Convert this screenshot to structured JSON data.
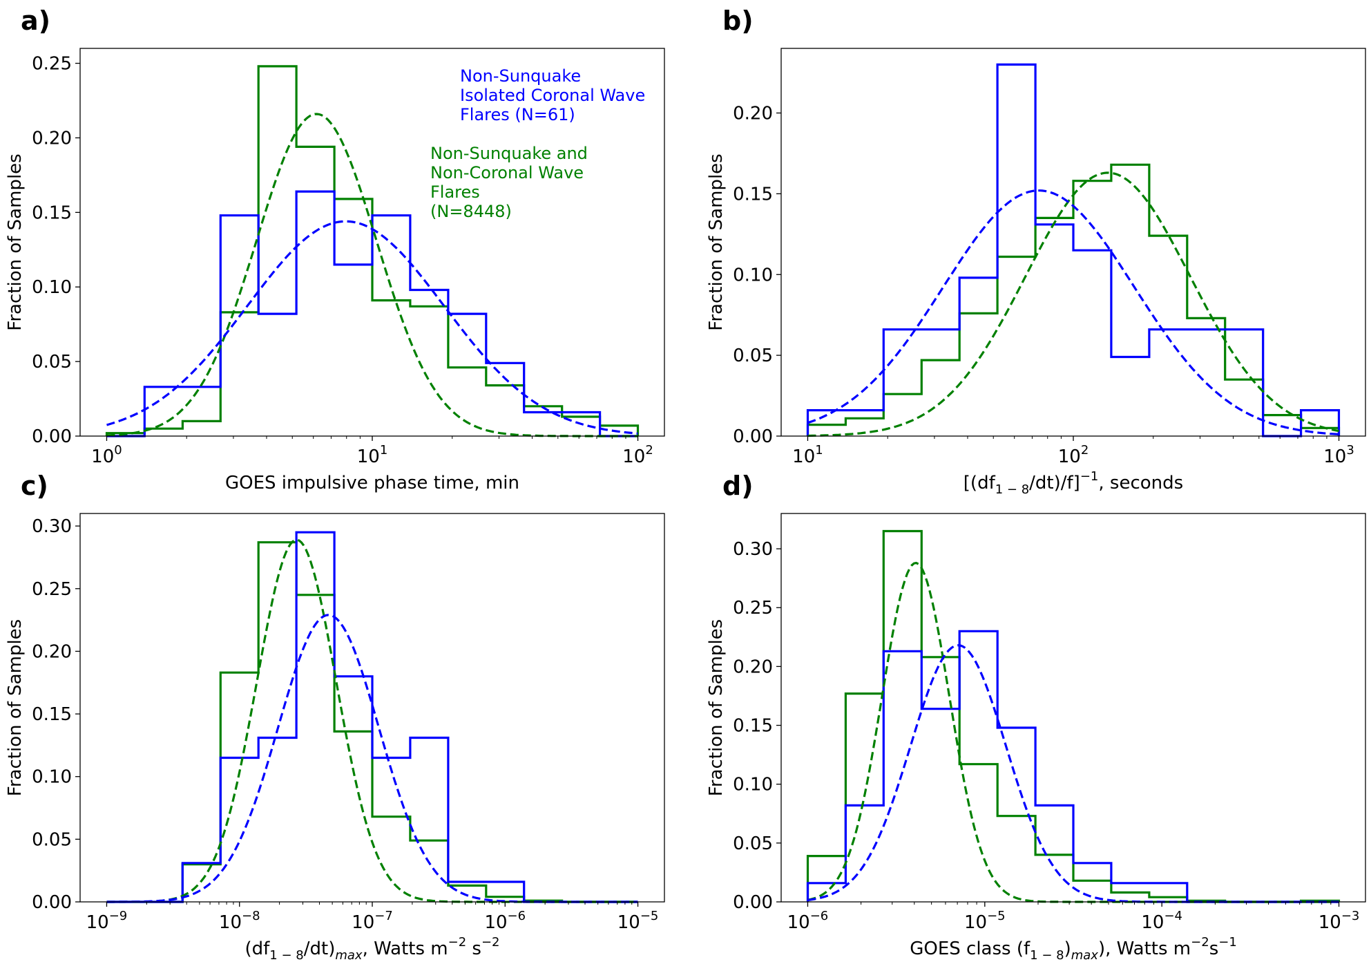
{
  "colors": {
    "blue": "#0000ff",
    "green": "#008000",
    "axis": "#000000"
  },
  "legend": {
    "blue": [
      "Non-Sunquake",
      "Isolated Coronal Wave",
      "Flares (N=61)"
    ],
    "green": [
      "Non-Sunquake and",
      "Non-Coronal Wave",
      "Flares",
      "(N=8448)"
    ]
  },
  "chart_data": [
    {
      "panel": "a)",
      "type": "histogram-step",
      "xscale": "log",
      "xlabel": "GOES impulsive phase time, min",
      "ylabel": "Fraction of Samples",
      "xlim": [
        1,
        100
      ],
      "ylim": [
        0,
        0.26
      ],
      "xticks": [
        {
          "v": 1,
          "b": "10",
          "e": "0"
        },
        {
          "v": 10,
          "b": "10",
          "e": "1"
        },
        {
          "v": 100,
          "b": "10",
          "e": "2"
        }
      ],
      "yticks": [
        0,
        0.05,
        0.1,
        0.15,
        0.2,
        0.25
      ],
      "yticklabels": [
        "0.00",
        "0.05",
        "0.10",
        "0.15",
        "0.20",
        "0.25"
      ],
      "edges": [
        1.0,
        1.389,
        1.931,
        2.683,
        3.728,
        5.179,
        7.197,
        10.0,
        13.895,
        19.307,
        26.827,
        37.276,
        51.795,
        71.969,
        100.0
      ],
      "series": [
        {
          "name": "Non-Sunquake and Non-Coronal Wave Flares (N=8448)",
          "color": "green",
          "values": [
            0.002,
            0.005,
            0.01,
            0.083,
            0.248,
            0.194,
            0.159,
            0.091,
            0.087,
            0.046,
            0.034,
            0.02,
            0.013,
            0.007
          ],
          "fit": {
            "peak": 0.216,
            "mu_log10": 0.79,
            "sigma_log10": 0.226
          }
        },
        {
          "name": "Non-Sunquake Isolated Coronal Wave Flares (N=61)",
          "color": "blue",
          "values": [
            0.0,
            0.033,
            0.033,
            0.148,
            0.082,
            0.164,
            0.115,
            0.148,
            0.098,
            0.082,
            0.049,
            0.016,
            0.016,
            0.0
          ],
          "fit": {
            "peak": 0.144,
            "mu_log10": 0.9,
            "sigma_log10": 0.37
          }
        }
      ]
    },
    {
      "panel": "b)",
      "type": "histogram-step",
      "xscale": "log",
      "xlabel": "[(df1−8/dt)/f]−1, seconds",
      "xlabel_parts": [
        "[(df",
        "1 − 8",
        "/dt)/f]",
        "−1",
        ", seconds"
      ],
      "ylabel": "Fraction of Samples",
      "xlim": [
        10,
        1000
      ],
      "ylim": [
        0,
        0.24
      ],
      "xticks": [
        {
          "v": 10,
          "b": "10",
          "e": "1"
        },
        {
          "v": 100,
          "b": "10",
          "e": "2"
        },
        {
          "v": 1000,
          "b": "10",
          "e": "3"
        }
      ],
      "yticks": [
        0,
        0.05,
        0.1,
        0.15,
        0.2
      ],
      "yticklabels": [
        "0.00",
        "0.05",
        "0.10",
        "0.15",
        "0.20"
      ],
      "edges": [
        10.0,
        13.895,
        19.307,
        26.827,
        37.276,
        51.795,
        71.969,
        100.0,
        138.95,
        193.07,
        268.27,
        372.76,
        517.95,
        719.69,
        1000.0
      ],
      "series": [
        {
          "name": "Non-Sunquake and Non-Coronal Wave Flares (N=8448)",
          "color": "green",
          "values": [
            0.007,
            0.011,
            0.026,
            0.047,
            0.076,
            0.111,
            0.135,
            0.158,
            0.168,
            0.124,
            0.073,
            0.035,
            0.013,
            0.005
          ],
          "fit": {
            "peak": 0.163,
            "mu_log10": 2.13,
            "sigma_log10": 0.31
          }
        },
        {
          "name": "Non-Sunquake Isolated Coronal Wave Flares (N=61)",
          "color": "blue",
          "values": [
            0.016,
            0.016,
            0.066,
            0.066,
            0.098,
            0.23,
            0.131,
            0.115,
            0.049,
            0.066,
            0.066,
            0.066,
            0.0,
            0.016
          ],
          "fit": {
            "peak": 0.152,
            "mu_log10": 1.87,
            "sigma_log10": 0.36
          }
        }
      ]
    },
    {
      "panel": "c)",
      "type": "histogram-step",
      "xscale": "log",
      "xlabel": "(df1−8/dt)max, Watts m−2 s−2",
      "xlabel_parts": [
        "(df",
        "1 − 8",
        "/dt)",
        "max",
        ", Watts m",
        "−2",
        " s",
        "−2"
      ],
      "ylabel": "Fraction of Samples",
      "xlim": [
        1e-09,
        1e-05
      ],
      "ylim": [
        0,
        0.31
      ],
      "xticks": [
        {
          "v": 1e-09,
          "b": "10",
          "e": "−9"
        },
        {
          "v": 1e-08,
          "b": "10",
          "e": "−8"
        },
        {
          "v": 1e-07,
          "b": "10",
          "e": "−7"
        },
        {
          "v": 1e-06,
          "b": "10",
          "e": "−6"
        },
        {
          "v": 1e-05,
          "b": "10",
          "e": "−5"
        }
      ],
      "yticks": [
        0,
        0.05,
        0.1,
        0.15,
        0.2,
        0.25,
        0.3
      ],
      "yticklabels": [
        "0.00",
        "0.05",
        "0.10",
        "0.15",
        "0.20",
        "0.25",
        "0.30"
      ],
      "edges": [
        1e-09,
        1.931e-09,
        3.728e-09,
        7.197e-09,
        1.389e-08,
        2.683e-08,
        5.179e-08,
        1e-07,
        1.931e-07,
        3.728e-07,
        7.197e-07,
        1.389e-06,
        2.683e-06,
        5.179e-06,
        1e-05
      ],
      "series": [
        {
          "name": "Non-Sunquake and Non-Coronal Wave Flares (N=8448)",
          "color": "green",
          "values": [
            0.0,
            0.0,
            0.03,
            0.183,
            0.287,
            0.245,
            0.136,
            0.068,
            0.049,
            0.013,
            0.004,
            0.001,
            0.0,
            0.0
          ],
          "fit": {
            "peak": 0.289,
            "mu_log10": -7.57,
            "sigma_log10": 0.3
          }
        },
        {
          "name": "Non-Sunquake Isolated Coronal Wave Flares (N=61)",
          "color": "blue",
          "values": [
            0.0,
            0.0,
            0.031,
            0.115,
            0.131,
            0.295,
            0.18,
            0.115,
            0.131,
            0.016,
            0.016,
            0.0,
            0.0,
            0.0
          ],
          "fit": {
            "peak": 0.229,
            "mu_log10": -7.33,
            "sigma_log10": 0.38
          }
        }
      ]
    },
    {
      "panel": "d)",
      "type": "histogram-step",
      "xscale": "log",
      "xlabel": "GOES class (f1−8)max), Watts m−2s−1",
      "xlabel_parts": [
        "GOES class (f",
        "1 − 8",
        ")",
        "max",
        "), Watts m",
        "−2",
        "s",
        "−1"
      ],
      "ylabel": "Fraction of Samples",
      "xlim": [
        1e-06,
        0.001
      ],
      "ylim": [
        0,
        0.33
      ],
      "xticks": [
        {
          "v": 1e-06,
          "b": "10",
          "e": "−6"
        },
        {
          "v": 1e-05,
          "b": "10",
          "e": "−5"
        },
        {
          "v": 0.0001,
          "b": "10",
          "e": "−4"
        },
        {
          "v": 0.001,
          "b": "10",
          "e": "−3"
        }
      ],
      "yticks": [
        0,
        0.05,
        0.1,
        0.15,
        0.2,
        0.25,
        0.3
      ],
      "yticklabels": [
        "0.00",
        "0.05",
        "0.10",
        "0.15",
        "0.20",
        "0.25",
        "0.30"
      ],
      "edges": [
        1e-06,
        1.638e-06,
        2.683e-06,
        4.394e-06,
        7.197e-06,
        1.179e-05,
        1.931e-05,
        3.162e-05,
        5.179e-05,
        8.483e-05,
        0.0001389,
        0.0002276,
        0.0003728,
        0.0006105,
        0.001
      ],
      "series": [
        {
          "name": "Non-Sunquake and Non-Coronal Wave Flares (N=8448)",
          "color": "green",
          "values": [
            0.039,
            0.177,
            0.315,
            0.208,
            0.117,
            0.073,
            0.04,
            0.018,
            0.008,
            0.004,
            0.001,
            0.0,
            0.0,
            0.001
          ],
          "fit": {
            "peak": 0.288,
            "mu_log10": -5.39,
            "sigma_log10": 0.19
          }
        },
        {
          "name": "Non-Sunquake Isolated Coronal Wave Flares (N=61)",
          "color": "blue",
          "values": [
            0.016,
            0.082,
            0.213,
            0.164,
            0.23,
            0.148,
            0.082,
            0.033,
            0.016,
            0.016,
            0.0,
            0.0,
            0.0,
            0.0
          ],
          "fit": {
            "peak": 0.218,
            "mu_log10": -5.15,
            "sigma_log10": 0.27
          }
        }
      ]
    }
  ]
}
